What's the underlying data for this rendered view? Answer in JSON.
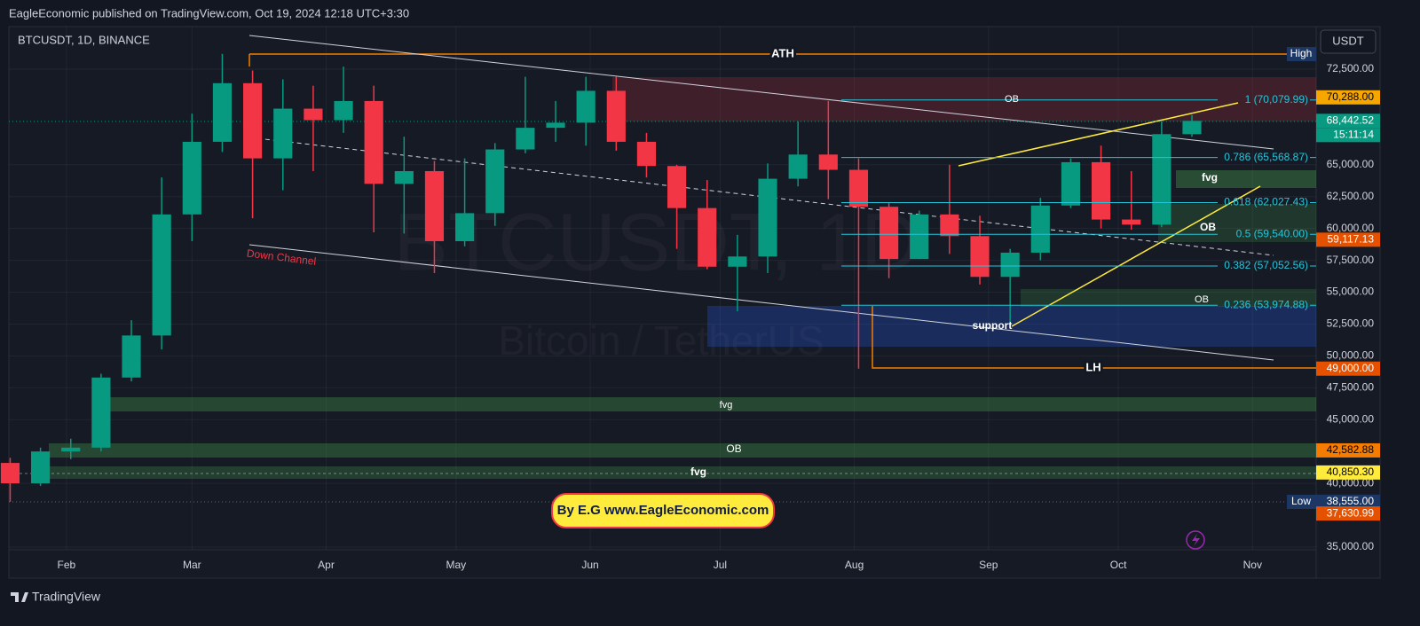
{
  "header": {
    "publisher": "EagleEconomic published on TradingView.com, Oct 19, 2024 12:18 UTC+3:30"
  },
  "chart_data": {
    "type": "candlestick",
    "symbol": "BTCUSDT, 1D, BINANCE",
    "currency": "USDT",
    "watermark": "BTCUSDT, 1D",
    "watermark_subtitle": "Bitcoin / TetherUS",
    "x": [
      19,
      26,
      33,
      40,
      47,
      54,
      61,
      68,
      75,
      82,
      89,
      96,
      103,
      110,
      117,
      124,
      131,
      138,
      145,
      152,
      159,
      166,
      173,
      180,
      187,
      194,
      201,
      208,
      215,
      222,
      229,
      236,
      243,
      250,
      257,
      264,
      271,
      278,
      285,
      292
    ],
    "open": [
      41600,
      40000,
      42500,
      42800,
      48300,
      51600,
      61100,
      66800,
      71400,
      65500,
      69400,
      68500,
      70000,
      63500,
      64500,
      59000,
      61200,
      66200,
      67900,
      68300,
      70800,
      66800,
      64900,
      61600,
      57000,
      57800,
      63900,
      65800,
      64600,
      61700,
      57600,
      61100,
      59400,
      56200,
      58100,
      61800,
      65200,
      60700,
      60300,
      67400
    ],
    "high": [
      42000,
      42800,
      43500,
      48600,
      52800,
      64000,
      69000,
      73700,
      72400,
      71700,
      71200,
      72700,
      71200,
      67200,
      65300,
      65500,
      66700,
      71900,
      70000,
      71900,
      71900,
      67500,
      65000,
      63800,
      59500,
      65100,
      68400,
      70000,
      65500,
      62000,
      61400,
      65000,
      61000,
      58400,
      62400,
      65500,
      66500,
      64500,
      68400,
      68900
    ],
    "low": [
      38555,
      39800,
      41900,
      42500,
      48000,
      50500,
      59000,
      66000,
      60800,
      63000,
      64500,
      67500,
      59700,
      59600,
      56500,
      58600,
      60200,
      65900,
      66800,
      66500,
      66100,
      64000,
      58400,
      56800,
      53500,
      56500,
      63300,
      62300,
      49000,
      56100,
      57600,
      58000,
      55600,
      52500,
      57500,
      61600,
      60000,
      59900,
      60100,
      67200
    ],
    "close": [
      40000,
      42500,
      42800,
      48300,
      51600,
      61100,
      66800,
      71400,
      65500,
      69400,
      68500,
      70000,
      63500,
      64500,
      59000,
      61200,
      66200,
      67900,
      68300,
      70800,
      66800,
      64900,
      61600,
      57000,
      57800,
      63900,
      65800,
      64600,
      61700,
      57600,
      61100,
      59400,
      56200,
      58100,
      61800,
      65200,
      60700,
      60300,
      67400,
      68442.52
    ],
    "up_color": "#089981",
    "down_color": "#f23645",
    "xlim": [
      18.7,
      320.7
    ],
    "xticks": [
      {
        "value": 32,
        "label": "Feb"
      },
      {
        "value": 61,
        "label": "Mar"
      },
      {
        "value": 92,
        "label": "Apr"
      },
      {
        "value": 122,
        "label": "May"
      },
      {
        "value": 153,
        "label": "Jun"
      },
      {
        "value": 183,
        "label": "Jul"
      },
      {
        "value": 214,
        "label": "Aug"
      },
      {
        "value": 245,
        "label": "Sep"
      },
      {
        "value": 275,
        "label": "Oct"
      },
      {
        "value": 306,
        "label": "Nov"
      }
    ],
    "ylim": [
      32700,
      75840
    ],
    "yticks": [
      {
        "value": 72500,
        "label": "72,500.00"
      },
      {
        "value": 65000,
        "label": "65,000.00"
      },
      {
        "value": 62500,
        "label": "62,500.00"
      },
      {
        "value": 60000,
        "label": "60,000.00"
      },
      {
        "value": 57500,
        "label": "57,500.00"
      },
      {
        "value": 55000,
        "label": "55,000.00"
      },
      {
        "value": 52500,
        "label": "52,500.00"
      },
      {
        "value": 50000,
        "label": "50,000.00"
      },
      {
        "value": 47500,
        "label": "47,500.00"
      },
      {
        "value": 45000,
        "label": "45,000.00"
      },
      {
        "value": 40000,
        "label": "40,000.00"
      },
      {
        "value": 35000,
        "label": "35,000.00"
      }
    ],
    "grid": true,
    "price_labels": [
      {
        "value": 70288,
        "label": "70,288.00",
        "color": "#f7a600",
        "text_color": "#000000"
      },
      {
        "value": 68442.52,
        "label": "68,442.52",
        "color": "#089981",
        "text_color": "#ffffff"
      },
      {
        "value": 59117.13,
        "label": "59,117.13",
        "color": "#e65100",
        "text_color": "#ffffff"
      },
      {
        "value": 49000,
        "label": "49,000.00",
        "color": "#e65100",
        "text_color": "#ffffff"
      },
      {
        "value": 42582.88,
        "label": "42,582.88",
        "color": "#f57c00",
        "text_color": "#000000"
      },
      {
        "value": 40850.3,
        "label": "40,850.30",
        "color": "#ffeb3b",
        "text_color": "#000000"
      },
      {
        "value": 38555,
        "label": "38,555.00",
        "color": "#1c3763",
        "text_color": "#ffffff"
      },
      {
        "value": 37630.99,
        "label": "37,630.99",
        "color": "#e65100",
        "text_color": "#ffffff"
      }
    ],
    "countdown": "15:11:14",
    "fib_levels": [
      {
        "value": 70079.99,
        "label": "1 (70,079.99)"
      },
      {
        "value": 65568.87,
        "label": "0.786 (65,568.87)"
      },
      {
        "value": 62027.43,
        "label": "0.618 (62,027.43)"
      },
      {
        "value": 59540,
        "label": "0.5 (59,540.00)"
      },
      {
        "value": 57052.56,
        "label": "0.382 (57,052.56)"
      },
      {
        "value": 53974.88,
        "label": "0.236 (53,974.88)"
      }
    ],
    "fib_color": "#26c6da",
    "annotations": [
      "ATH",
      "OB",
      "fvg",
      "OB",
      "OB",
      "Down Channel",
      "support",
      "LH",
      "fvg",
      "OB",
      "fvg",
      "High",
      "Low"
    ]
  },
  "banner": "By E.G www.EagleEconomic.com",
  "footer": "TradingView"
}
